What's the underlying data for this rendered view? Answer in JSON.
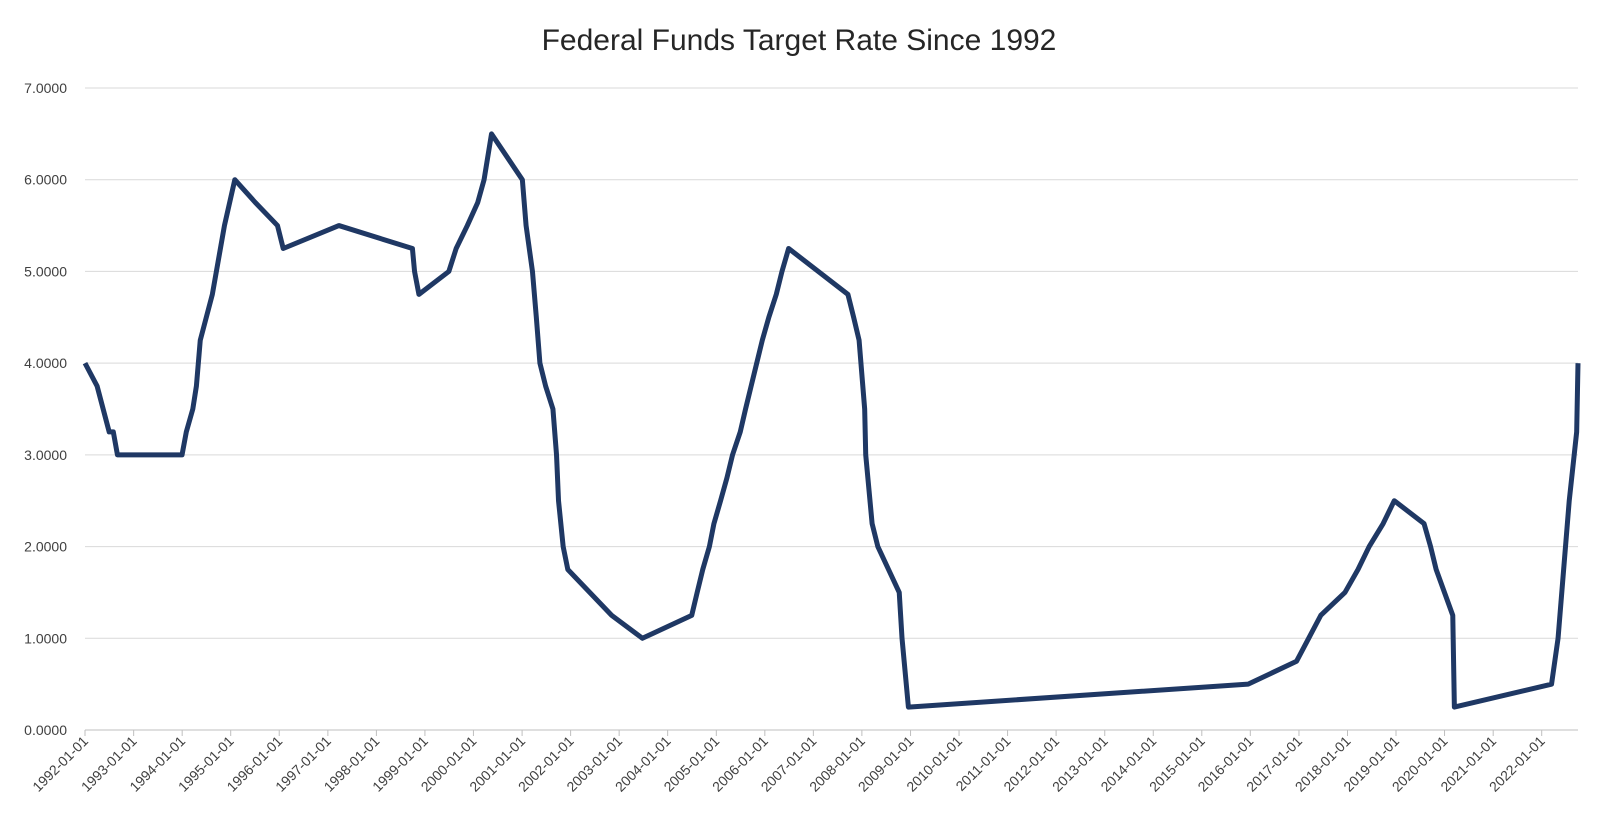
{
  "chart_data": {
    "type": "line",
    "title": "Federal Funds Target Rate Since 1992",
    "xlabel": "",
    "ylabel": "",
    "ylim": [
      0,
      7
    ],
    "yticks": [
      "0.0000",
      "1.0000",
      "2.0000",
      "3.0000",
      "4.0000",
      "5.0000",
      "6.0000",
      "7.0000"
    ],
    "xlim": [
      "1992-01-01",
      "2022-10-01"
    ],
    "xticks": [
      "1992-01-01",
      "1993-01-01",
      "1994-01-01",
      "1995-01-01",
      "1996-01-01",
      "1997-01-01",
      "1998-01-01",
      "1999-01-01",
      "2000-01-01",
      "2001-01-01",
      "2002-01-01",
      "2003-01-01",
      "2004-01-01",
      "2005-01-01",
      "2006-01-01",
      "2007-01-01",
      "2008-01-01",
      "2009-01-01",
      "2010-01-01",
      "2011-01-01",
      "2012-01-01",
      "2013-01-01",
      "2014-01-01",
      "2015-01-01",
      "2016-01-01",
      "2017-01-01",
      "2018-01-01",
      "2019-01-01",
      "2020-01-01",
      "2021-01-01",
      "2022-01-01"
    ],
    "grid": true,
    "legend": "none",
    "line_color": "#1f3864",
    "series": [
      {
        "x": [
          "1992-01-01",
          "1992-04-01",
          "1992-07-01",
          "1992-08-01",
          "1992-09-01",
          "1993-01-01",
          "1993-12-31",
          "1994-02-01",
          "1994-03-22",
          "1994-04-18",
          "1994-05-17",
          "1994-08-16",
          "1994-11-15",
          "1995-02-01",
          "1995-07-06",
          "1995-12-19",
          "1996-01-31",
          "1997-03-25",
          "1998-09-29",
          "1998-10-15",
          "1998-11-17",
          "1999-06-30",
          "1999-08-24",
          "1999-11-16",
          "2000-02-02",
          "2000-03-21",
          "2000-05-16",
          "2001-01-03",
          "2001-01-31",
          "2001-03-20",
          "2001-04-18",
          "2001-05-15",
          "2001-06-27",
          "2001-08-21",
          "2001-09-17",
          "2001-10-02",
          "2001-11-06",
          "2001-12-11",
          "2002-11-06",
          "2003-06-25",
          "2004-06-30",
          "2004-08-10",
          "2004-09-21",
          "2004-11-10",
          "2004-12-14",
          "2005-02-02",
          "2005-03-22",
          "2005-05-03",
          "2005-06-30",
          "2005-08-09",
          "2005-09-20",
          "2005-11-01",
          "2005-12-13",
          "2006-01-31",
          "2006-03-28",
          "2006-05-10",
          "2006-06-29",
          "2007-09-18",
          "2007-10-31",
          "2007-12-11",
          "2008-01-22",
          "2008-01-30",
          "2008-03-18",
          "2008-04-30",
          "2008-10-08",
          "2008-10-29",
          "2008-12-16",
          "2015-12-16",
          "2016-12-14",
          "2017-03-15",
          "2017-06-14",
          "2017-12-13",
          "2018-03-21",
          "2018-06-13",
          "2018-09-26",
          "2018-12-19",
          "2019-07-31",
          "2019-09-18",
          "2019-10-30",
          "2020-03-03",
          "2020-03-15",
          "2022-03-16",
          "2022-05-04",
          "2022-06-15",
          "2022-07-27",
          "2022-09-21",
          "2022-10-01"
        ],
        "y": [
          4.0,
          3.75,
          3.25,
          3.25,
          3.0,
          3.0,
          3.0,
          3.25,
          3.5,
          3.75,
          4.25,
          4.75,
          5.5,
          6.0,
          5.75,
          5.5,
          5.25,
          5.5,
          5.25,
          5.0,
          4.75,
          5.0,
          5.25,
          5.5,
          5.75,
          6.0,
          6.5,
          6.0,
          5.5,
          5.0,
          4.5,
          4.0,
          3.75,
          3.5,
          3.0,
          2.5,
          2.0,
          1.75,
          1.25,
          1.0,
          1.25,
          1.5,
          1.75,
          2.0,
          2.25,
          2.5,
          2.75,
          3.0,
          3.25,
          3.5,
          3.75,
          4.0,
          4.25,
          4.5,
          4.75,
          5.0,
          5.25,
          4.75,
          4.5,
          4.25,
          3.5,
          3.0,
          2.25,
          2.0,
          1.5,
          1.0,
          0.25,
          0.5,
          0.75,
          1.0,
          1.25,
          1.5,
          1.75,
          2.0,
          2.25,
          2.5,
          2.25,
          2.0,
          1.75,
          1.25,
          0.25,
          0.5,
          1.0,
          1.75,
          2.5,
          3.25,
          4.0
        ]
      }
    ]
  }
}
